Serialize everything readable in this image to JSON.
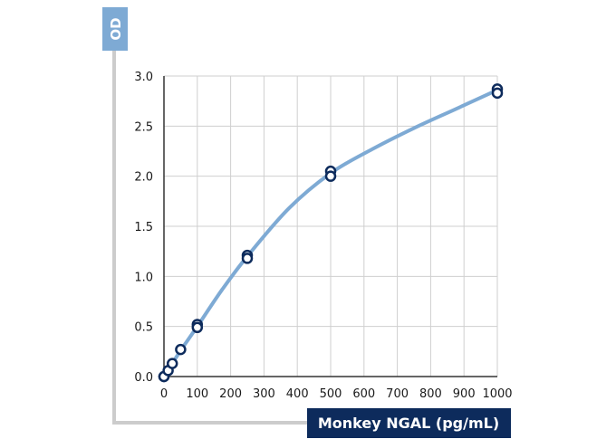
{
  "chart_data": {
    "type": "scatter",
    "title": "",
    "ylabel": "OD",
    "xlabel": "Monkey NGAL (pg/mL)",
    "xlim": [
      0,
      1000
    ],
    "ylim": [
      0,
      3.0
    ],
    "x_ticks": [
      "0",
      "100",
      "200",
      "300",
      "400",
      "500",
      "600",
      "700",
      "800",
      "900",
      "1000"
    ],
    "y_ticks": [
      "0.0",
      "0.5",
      "1.0",
      "1.5",
      "2.0",
      "2.5",
      "3.0"
    ],
    "x_tick_values": [
      0,
      100,
      200,
      300,
      400,
      500,
      600,
      700,
      800,
      900,
      1000
    ],
    "y_tick_values": [
      0,
      0.5,
      1.0,
      1.5,
      2.0,
      2.5,
      3.0
    ],
    "grid": true,
    "points": [
      {
        "x": 0,
        "y": 0.0
      },
      {
        "x": 0,
        "y": 0.0
      },
      {
        "x": 12.5,
        "y": 0.06
      },
      {
        "x": 25,
        "y": 0.13
      },
      {
        "x": 50,
        "y": 0.27
      },
      {
        "x": 100,
        "y": 0.52
      },
      {
        "x": 100,
        "y": 0.49
      },
      {
        "x": 250,
        "y": 1.21
      },
      {
        "x": 250,
        "y": 1.18
      },
      {
        "x": 500,
        "y": 2.05
      },
      {
        "x": 500,
        "y": 2.0
      },
      {
        "x": 1000,
        "y": 2.87
      },
      {
        "x": 1000,
        "y": 2.83
      }
    ],
    "fit_curve": [
      {
        "x": 0,
        "y": 0.0
      },
      {
        "x": 12.5,
        "y": 0.06
      },
      {
        "x": 25,
        "y": 0.13
      },
      {
        "x": 50,
        "y": 0.26
      },
      {
        "x": 100,
        "y": 0.5
      },
      {
        "x": 175,
        "y": 0.87
      },
      {
        "x": 250,
        "y": 1.2
      },
      {
        "x": 375,
        "y": 1.68
      },
      {
        "x": 500,
        "y": 2.03
      },
      {
        "x": 625,
        "y": 2.27
      },
      {
        "x": 750,
        "y": 2.48
      },
      {
        "x": 875,
        "y": 2.67
      },
      {
        "x": 1000,
        "y": 2.86
      }
    ],
    "colors": {
      "curve": "#7eaad4",
      "marker_stroke": "#0d2b5c",
      "marker_fill": "#ffffff",
      "grid": "#cfcfcf",
      "frame": "#cccccc",
      "ylabel_bg": "#7eaad4",
      "xlabel_bg": "#0d2b5c"
    }
  }
}
